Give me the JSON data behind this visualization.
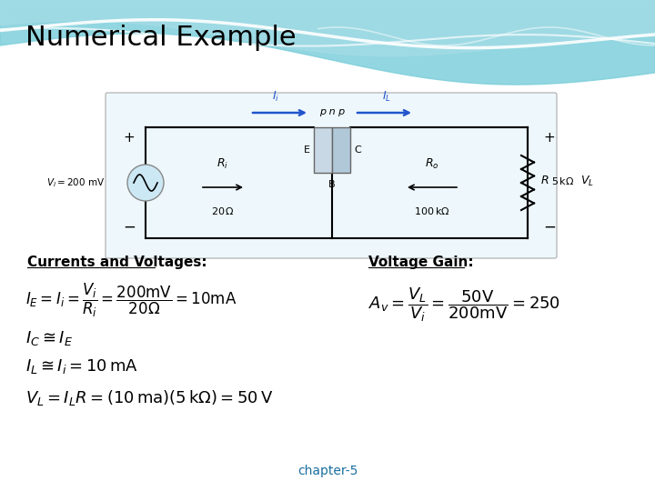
{
  "title": "Numerical Example",
  "title_fontsize": 22,
  "title_color": "#000000",
  "chapter_label": "chapter-5",
  "chapter_color": "#1a6fa0",
  "currents_label": "Currents and Voltages:",
  "voltage_gain_label": "Voltage Gain:",
  "slide_bg": "#ffffff"
}
